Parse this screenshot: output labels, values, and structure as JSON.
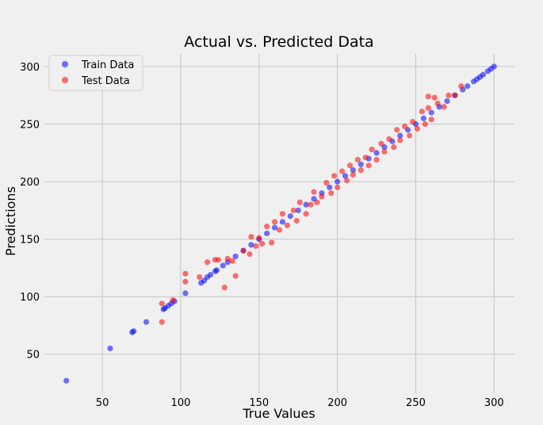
{
  "chart_data": {
    "type": "scatter",
    "title": "Actual vs. Predicted Data",
    "xlabel": "True Values",
    "ylabel": "Predictions",
    "xlim": [
      13,
      313
    ],
    "ylim": [
      16,
      311
    ],
    "xticks": [
      50,
      100,
      150,
      200,
      250,
      300
    ],
    "yticks": [
      50,
      100,
      150,
      200,
      250,
      300
    ],
    "grid": true,
    "legend_position": "top-left",
    "series": [
      {
        "name": "Train Data",
        "color": "#0000ff",
        "points": [
          [
            27,
            27
          ],
          [
            55,
            55
          ],
          [
            69,
            69
          ],
          [
            70,
            70
          ],
          [
            78,
            78
          ],
          [
            89,
            89
          ],
          [
            90,
            90
          ],
          [
            92,
            92
          ],
          [
            94,
            94
          ],
          [
            96,
            96
          ],
          [
            103,
            103
          ],
          [
            113,
            112
          ],
          [
            115,
            114
          ],
          [
            117,
            117
          ],
          [
            119,
            119
          ],
          [
            122,
            122
          ],
          [
            123,
            123
          ],
          [
            127,
            127
          ],
          [
            130,
            130
          ],
          [
            135,
            135
          ],
          [
            140,
            140
          ],
          [
            145,
            145
          ],
          [
            150,
            150
          ],
          [
            155,
            155
          ],
          [
            160,
            160
          ],
          [
            165,
            165
          ],
          [
            170,
            170
          ],
          [
            175,
            175
          ],
          [
            180,
            180
          ],
          [
            185,
            185
          ],
          [
            190,
            190
          ],
          [
            195,
            195
          ],
          [
            200,
            200
          ],
          [
            205,
            205
          ],
          [
            210,
            210
          ],
          [
            215,
            215
          ],
          [
            220,
            220
          ],
          [
            225,
            225
          ],
          [
            230,
            230
          ],
          [
            235,
            235
          ],
          [
            240,
            240
          ],
          [
            245,
            245
          ],
          [
            250,
            250
          ],
          [
            255,
            255
          ],
          [
            260,
            260
          ],
          [
            265,
            265
          ],
          [
            270,
            270
          ],
          [
            275,
            275
          ],
          [
            280,
            280
          ],
          [
            283,
            283
          ],
          [
            287,
            287
          ],
          [
            289,
            289
          ],
          [
            291,
            291
          ],
          [
            293,
            293
          ],
          [
            296,
            296
          ],
          [
            298,
            298
          ],
          [
            300,
            300
          ]
        ]
      },
      {
        "name": "Test Data",
        "color": "#ff0000",
        "points": [
          [
            88,
            78
          ],
          [
            88,
            94
          ],
          [
            95,
            97
          ],
          [
            103,
            113
          ],
          [
            103,
            120
          ],
          [
            112,
            117
          ],
          [
            117,
            130
          ],
          [
            122,
            132
          ],
          [
            124,
            132
          ],
          [
            128,
            108
          ],
          [
            130,
            133
          ],
          [
            133,
            131
          ],
          [
            135,
            118
          ],
          [
            140,
            140
          ],
          [
            144,
            137
          ],
          [
            145,
            152
          ],
          [
            148,
            144
          ],
          [
            150,
            151
          ],
          [
            152,
            146
          ],
          [
            155,
            161
          ],
          [
            158,
            147
          ],
          [
            160,
            165
          ],
          [
            163,
            158
          ],
          [
            165,
            172
          ],
          [
            168,
            162
          ],
          [
            172,
            175
          ],
          [
            174,
            166
          ],
          [
            176,
            182
          ],
          [
            180,
            172
          ],
          [
            183,
            180
          ],
          [
            185,
            191
          ],
          [
            187,
            182
          ],
          [
            190,
            187
          ],
          [
            193,
            199
          ],
          [
            196,
            190
          ],
          [
            198,
            205
          ],
          [
            200,
            195
          ],
          [
            203,
            209
          ],
          [
            206,
            201
          ],
          [
            208,
            214
          ],
          [
            210,
            206
          ],
          [
            213,
            219
          ],
          [
            215,
            210
          ],
          [
            218,
            221
          ],
          [
            220,
            214
          ],
          [
            222,
            228
          ],
          [
            225,
            219
          ],
          [
            228,
            233
          ],
          [
            230,
            226
          ],
          [
            233,
            237
          ],
          [
            236,
            230
          ],
          [
            238,
            245
          ],
          [
            240,
            236
          ],
          [
            243,
            248
          ],
          [
            246,
            240
          ],
          [
            248,
            252
          ],
          [
            251,
            246
          ],
          [
            254,
            261
          ],
          [
            256,
            250
          ],
          [
            258,
            264
          ],
          [
            258,
            274
          ],
          [
            260,
            254
          ],
          [
            262,
            273
          ],
          [
            264,
            268
          ],
          [
            268,
            265
          ],
          [
            271,
            275
          ],
          [
            275,
            275
          ],
          [
            279,
            283
          ]
        ]
      }
    ]
  }
}
